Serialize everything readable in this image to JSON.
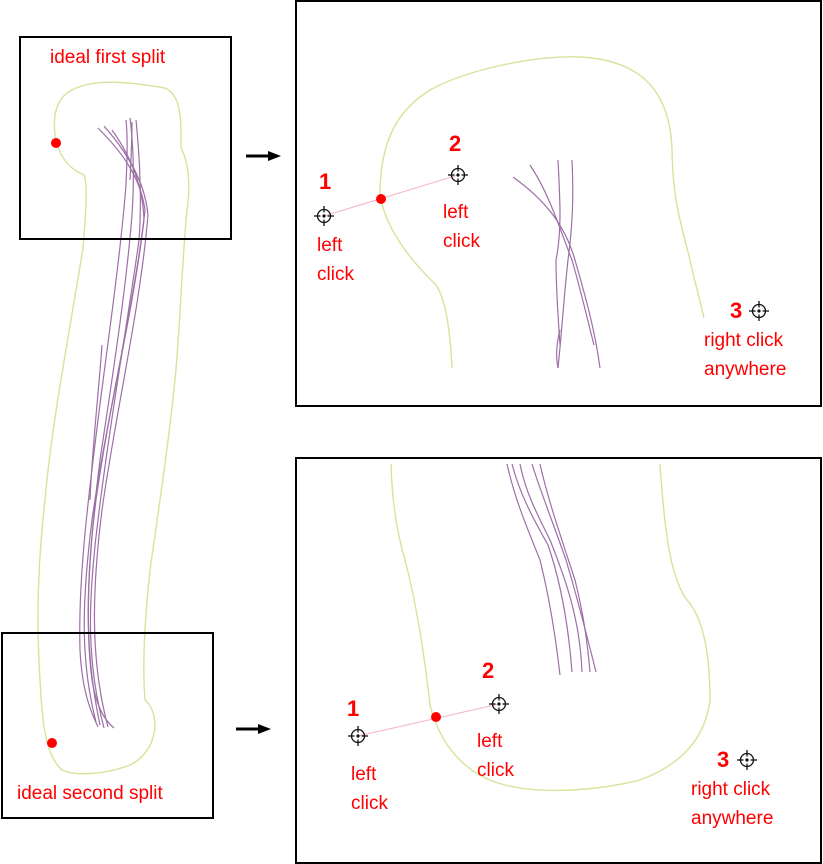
{
  "colors": {
    "outline": "#d6e39a",
    "tracts": "#9c6fa6",
    "accent": "#ff0000",
    "frame": "#000000"
  },
  "overview": {
    "first_split_label": "ideal first split",
    "second_split_label": "ideal second split"
  },
  "top_panel": {
    "step1": {
      "number": "1",
      "action_line1": "left",
      "action_line2": "click"
    },
    "step2": {
      "number": "2",
      "action_line1": "left",
      "action_line2": "click"
    },
    "step3": {
      "number": "3",
      "action_line1": "right click",
      "action_line2": "anywhere"
    }
  },
  "bottom_panel": {
    "step1": {
      "number": "1",
      "action_line1": "left",
      "action_line2": "click"
    },
    "step2": {
      "number": "2",
      "action_line1": "left",
      "action_line2": "click"
    },
    "step3": {
      "number": "3",
      "action_line1": "right click",
      "action_line2": "anywhere"
    }
  },
  "icons": {
    "arrow": "right-arrow-icon",
    "crosshair": "crosshair-icon",
    "split_point": "split-point-marker"
  }
}
